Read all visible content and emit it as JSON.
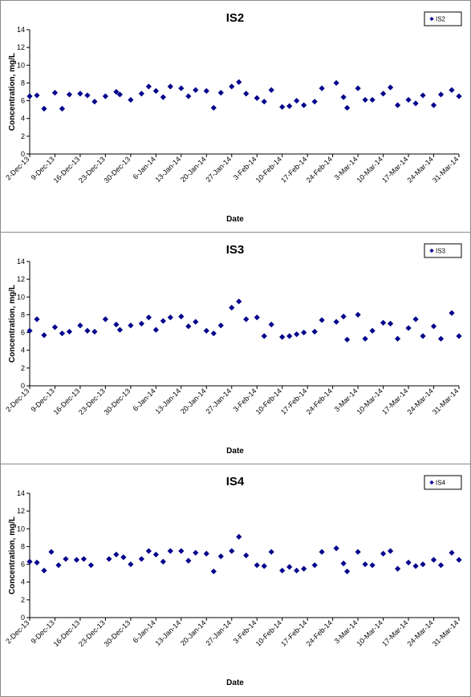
{
  "colors": {
    "marker": "#00008B",
    "axis": "#000000"
  },
  "chart_data": [
    {
      "type": "scatter",
      "title": "IS2",
      "xlabel": "Date",
      "ylabel": "Concentration, mg/L",
      "ylim": [
        0,
        14
      ],
      "yticks": [
        0,
        2,
        4,
        6,
        8,
        10,
        12,
        14
      ],
      "xlim": [
        "2013-12-02",
        "2014-03-31"
      ],
      "xtick_labels": [
        "2-Dec-13",
        "9-Dec-13",
        "16-Dec-13",
        "23-Dec-13",
        "30-Dec-13",
        "6-Jan-14",
        "13-Jan-14",
        "20-Jan-14",
        "27-Jan-14",
        "3-Feb-14",
        "10-Feb-14",
        "17-Feb-14",
        "24-Feb-14",
        "3-Mar-14",
        "10-Mar-14",
        "17-Mar-14",
        "24-Mar-14",
        "31-Mar-14"
      ],
      "grid": false,
      "legend_position": "top-right",
      "series": [
        {
          "name": "IS2",
          "points": [
            [
              "2013-12-02",
              6.5
            ],
            [
              "2013-12-04",
              6.6
            ],
            [
              "2013-12-06",
              5.1
            ],
            [
              "2013-12-09",
              6.9
            ],
            [
              "2013-12-11",
              5.1
            ],
            [
              "2013-12-13",
              6.7
            ],
            [
              "2013-12-16",
              6.8
            ],
            [
              "2013-12-18",
              6.6
            ],
            [
              "2013-12-20",
              5.9
            ],
            [
              "2013-12-23",
              6.5
            ],
            [
              "2013-12-26",
              7.0
            ],
            [
              "2013-12-27",
              6.7
            ],
            [
              "2013-12-30",
              6.1
            ],
            [
              "2014-01-02",
              6.8
            ],
            [
              "2014-01-04",
              7.6
            ],
            [
              "2014-01-06",
              7.1
            ],
            [
              "2014-01-08",
              6.4
            ],
            [
              "2014-01-10",
              7.6
            ],
            [
              "2014-01-13",
              7.4
            ],
            [
              "2014-01-15",
              6.5
            ],
            [
              "2014-01-17",
              7.2
            ],
            [
              "2014-01-20",
              7.1
            ],
            [
              "2014-01-22",
              5.2
            ],
            [
              "2014-01-24",
              6.9
            ],
            [
              "2014-01-27",
              7.6
            ],
            [
              "2014-01-29",
              8.1
            ],
            [
              "2014-01-31",
              6.8
            ],
            [
              "2014-02-03",
              6.3
            ],
            [
              "2014-02-05",
              5.9
            ],
            [
              "2014-02-07",
              7.2
            ],
            [
              "2014-02-10",
              5.3
            ],
            [
              "2014-02-12",
              5.4
            ],
            [
              "2014-02-14",
              6.0
            ],
            [
              "2014-02-16",
              5.5
            ],
            [
              "2014-02-19",
              5.9
            ],
            [
              "2014-02-21",
              7.4
            ],
            [
              "2014-02-25",
              8.0
            ],
            [
              "2014-02-27",
              6.4
            ],
            [
              "2014-02-28",
              5.2
            ],
            [
              "2014-03-03",
              7.4
            ],
            [
              "2014-03-05",
              6.1
            ],
            [
              "2014-03-07",
              6.1
            ],
            [
              "2014-03-10",
              6.8
            ],
            [
              "2014-03-12",
              7.5
            ],
            [
              "2014-03-14",
              5.5
            ],
            [
              "2014-03-17",
              6.1
            ],
            [
              "2014-03-19",
              5.7
            ],
            [
              "2014-03-21",
              6.6
            ],
            [
              "2014-03-24",
              5.5
            ],
            [
              "2014-03-26",
              6.7
            ],
            [
              "2014-03-29",
              7.2
            ],
            [
              "2014-03-31",
              6.5
            ]
          ]
        }
      ]
    },
    {
      "type": "scatter",
      "title": "IS3",
      "xlabel": "Date",
      "ylabel": "Concentration, mg/L",
      "ylim": [
        0,
        14
      ],
      "yticks": [
        0,
        2,
        4,
        6,
        8,
        10,
        12,
        14
      ],
      "xlim": [
        "2013-12-02",
        "2014-03-31"
      ],
      "xtick_labels": [
        "2-Dec-13",
        "9-Dec-13",
        "16-Dec-13",
        "23-Dec-13",
        "30-Dec-13",
        "6-Jan-14",
        "13-Jan-14",
        "20-Jan-14",
        "27-Jan-14",
        "3-Feb-14",
        "10-Feb-14",
        "17-Feb-14",
        "24-Feb-14",
        "3-Mar-14",
        "10-Mar-14",
        "17-Mar-14",
        "24-Mar-14",
        "31-Mar-14"
      ],
      "grid": false,
      "legend_position": "top-right",
      "series": [
        {
          "name": "IS3",
          "points": [
            [
              "2013-12-02",
              6.2
            ],
            [
              "2013-12-04",
              7.5
            ],
            [
              "2013-12-06",
              5.7
            ],
            [
              "2013-12-09",
              6.6
            ],
            [
              "2013-12-11",
              5.9
            ],
            [
              "2013-12-13",
              6.1
            ],
            [
              "2013-12-16",
              6.8
            ],
            [
              "2013-12-18",
              6.2
            ],
            [
              "2013-12-20",
              6.1
            ],
            [
              "2013-12-23",
              7.5
            ],
            [
              "2013-12-26",
              6.9
            ],
            [
              "2013-12-27",
              6.3
            ],
            [
              "2013-12-30",
              6.8
            ],
            [
              "2014-01-02",
              7.0
            ],
            [
              "2014-01-04",
              7.7
            ],
            [
              "2014-01-06",
              6.3
            ],
            [
              "2014-01-08",
              7.3
            ],
            [
              "2014-01-10",
              7.7
            ],
            [
              "2014-01-13",
              7.8
            ],
            [
              "2014-01-15",
              6.7
            ],
            [
              "2014-01-17",
              7.2
            ],
            [
              "2014-01-20",
              6.2
            ],
            [
              "2014-01-22",
              5.9
            ],
            [
              "2014-01-24",
              6.8
            ],
            [
              "2014-01-27",
              8.8
            ],
            [
              "2014-01-29",
              9.5
            ],
            [
              "2014-01-31",
              7.5
            ],
            [
              "2014-02-03",
              7.7
            ],
            [
              "2014-02-05",
              5.6
            ],
            [
              "2014-02-07",
              6.9
            ],
            [
              "2014-02-10",
              5.5
            ],
            [
              "2014-02-12",
              5.6
            ],
            [
              "2014-02-14",
              5.8
            ],
            [
              "2014-02-16",
              6.0
            ],
            [
              "2014-02-19",
              6.1
            ],
            [
              "2014-02-21",
              7.4
            ],
            [
              "2014-02-25",
              7.2
            ],
            [
              "2014-02-27",
              7.8
            ],
            [
              "2014-02-28",
              5.2
            ],
            [
              "2014-03-03",
              8.0
            ],
            [
              "2014-03-05",
              5.3
            ],
            [
              "2014-03-07",
              6.2
            ],
            [
              "2014-03-10",
              7.1
            ],
            [
              "2014-03-12",
              7.0
            ],
            [
              "2014-03-14",
              5.3
            ],
            [
              "2014-03-17",
              6.5
            ],
            [
              "2014-03-19",
              7.5
            ],
            [
              "2014-03-21",
              5.6
            ],
            [
              "2014-03-24",
              6.7
            ],
            [
              "2014-03-26",
              5.3
            ],
            [
              "2014-03-29",
              8.2
            ],
            [
              "2014-03-31",
              5.6
            ]
          ]
        }
      ]
    },
    {
      "type": "scatter",
      "title": "IS4",
      "xlabel": "Date",
      "ylabel": "Concentration, mg/L",
      "ylim": [
        0,
        14
      ],
      "yticks": [
        0,
        2,
        4,
        6,
        8,
        10,
        12,
        14
      ],
      "xlim": [
        "2013-12-02",
        "2014-03-31"
      ],
      "xtick_labels": [
        "2-Dec-13",
        "9-Dec-13",
        "16-Dec-13",
        "23-Dec-13",
        "30-Dec-13",
        "6-Jan-14",
        "13-Jan-14",
        "20-Jan-14",
        "27-Jan-14",
        "3-Feb-14",
        "10-Feb-14",
        "17-Feb-14",
        "24-Feb-14",
        "3-Mar-14",
        "10-Mar-14",
        "17-Mar-14",
        "24-Mar-14",
        "31-Mar-14"
      ],
      "grid": false,
      "legend_position": "top-right",
      "series": [
        {
          "name": "IS4",
          "points": [
            [
              "2013-12-02",
              6.3
            ],
            [
              "2013-12-04",
              6.2
            ],
            [
              "2013-12-06",
              5.3
            ],
            [
              "2013-12-08",
              7.4
            ],
            [
              "2013-12-10",
              5.9
            ],
            [
              "2013-12-12",
              6.6
            ],
            [
              "2013-12-15",
              6.5
            ],
            [
              "2013-12-17",
              6.6
            ],
            [
              "2013-12-19",
              5.9
            ],
            [
              "2013-12-24",
              6.6
            ],
            [
              "2013-12-26",
              7.1
            ],
            [
              "2013-12-28",
              6.8
            ],
            [
              "2013-12-30",
              6.0
            ],
            [
              "2014-01-02",
              6.6
            ],
            [
              "2014-01-04",
              7.5
            ],
            [
              "2014-01-06",
              7.1
            ],
            [
              "2014-01-08",
              6.3
            ],
            [
              "2014-01-10",
              7.5
            ],
            [
              "2014-01-13",
              7.5
            ],
            [
              "2014-01-15",
              6.4
            ],
            [
              "2014-01-17",
              7.3
            ],
            [
              "2014-01-20",
              7.2
            ],
            [
              "2014-01-22",
              5.2
            ],
            [
              "2014-01-24",
              6.9
            ],
            [
              "2014-01-27",
              7.5
            ],
            [
              "2014-01-29",
              9.1
            ],
            [
              "2014-01-31",
              7.0
            ],
            [
              "2014-02-03",
              5.9
            ],
            [
              "2014-02-05",
              5.8
            ],
            [
              "2014-02-07",
              7.4
            ],
            [
              "2014-02-10",
              5.3
            ],
            [
              "2014-02-12",
              5.7
            ],
            [
              "2014-02-14",
              5.3
            ],
            [
              "2014-02-16",
              5.5
            ],
            [
              "2014-02-19",
              5.9
            ],
            [
              "2014-02-21",
              7.4
            ],
            [
              "2014-02-25",
              7.8
            ],
            [
              "2014-02-27",
              6.1
            ],
            [
              "2014-02-28",
              5.2
            ],
            [
              "2014-03-03",
              7.4
            ],
            [
              "2014-03-05",
              6.0
            ],
            [
              "2014-03-07",
              5.9
            ],
            [
              "2014-03-10",
              7.2
            ],
            [
              "2014-03-12",
              7.5
            ],
            [
              "2014-03-14",
              5.5
            ],
            [
              "2014-03-17",
              6.2
            ],
            [
              "2014-03-19",
              5.8
            ],
            [
              "2014-03-21",
              6.0
            ],
            [
              "2014-03-24",
              6.5
            ],
            [
              "2014-03-26",
              5.9
            ],
            [
              "2014-03-29",
              7.3
            ],
            [
              "2014-03-31",
              6.5
            ]
          ]
        }
      ]
    }
  ]
}
